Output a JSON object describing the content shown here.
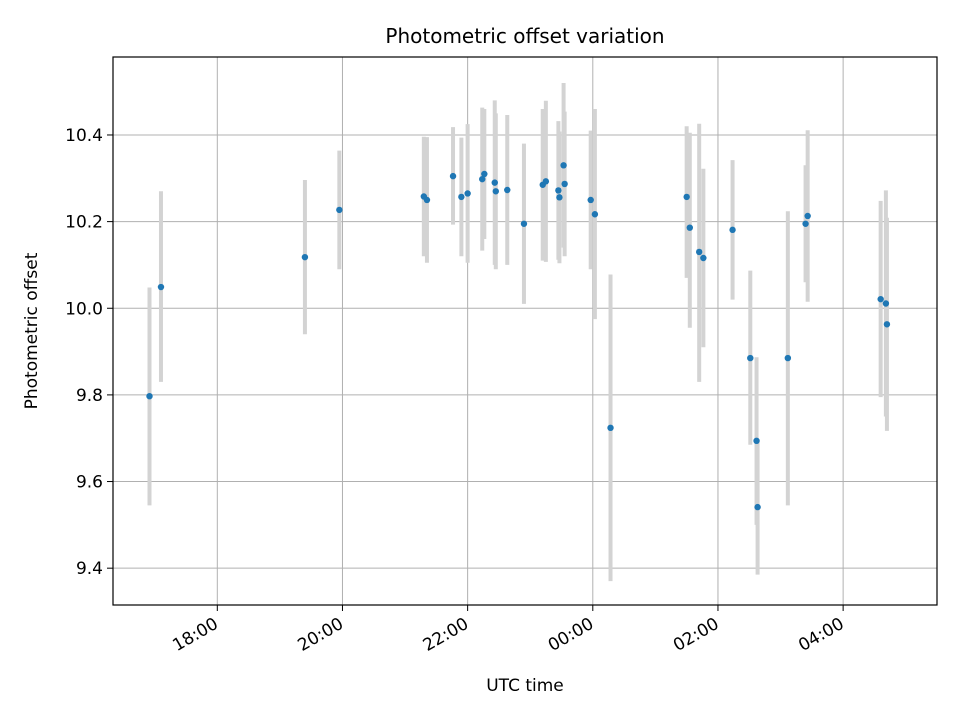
{
  "chart_data": {
    "type": "scatter",
    "title": "Photometric offset variation",
    "xlabel": "UTC time",
    "ylabel": "Photometric offset",
    "x_unit": "UTC time (HH:MM)",
    "xlim": [
      "16:20",
      "05:30"
    ],
    "ylim": [
      9.315,
      10.58
    ],
    "x_ticks": [
      "18:00",
      "20:00",
      "22:00",
      "00:00",
      "02:00",
      "04:00"
    ],
    "y_ticks": [
      9.4,
      9.6,
      9.8,
      10.0,
      10.2,
      10.4
    ],
    "y_tick_labels": [
      "9.4",
      "9.6",
      "9.8",
      "10.0",
      "10.2",
      "10.4"
    ],
    "grid": true,
    "colors": {
      "point": "#1f77b4",
      "errorbar": "#d3d3d3",
      "grid": "#b0b0b0",
      "axes": "#000000"
    },
    "points": [
      {
        "x": "16:55",
        "y": 9.797,
        "ymin": 9.545,
        "ymax": 10.048
      },
      {
        "x": "17:06",
        "y": 10.049,
        "ymin": 9.83,
        "ymax": 10.27
      },
      {
        "x": "19:24",
        "y": 10.118,
        "ymin": 9.94,
        "ymax": 10.296
      },
      {
        "x": "19:57",
        "y": 10.227,
        "ymin": 10.09,
        "ymax": 10.364
      },
      {
        "x": "21:18",
        "y": 10.258,
        "ymin": 10.12,
        "ymax": 10.396
      },
      {
        "x": "21:21",
        "y": 10.25,
        "ymin": 10.105,
        "ymax": 10.395
      },
      {
        "x": "21:46",
        "y": 10.305,
        "ymin": 10.193,
        "ymax": 10.418
      },
      {
        "x": "21:54",
        "y": 10.257,
        "ymin": 10.12,
        "ymax": 10.394
      },
      {
        "x": "22:00",
        "y": 10.265,
        "ymin": 10.105,
        "ymax": 10.425
      },
      {
        "x": "22:14",
        "y": 10.298,
        "ymin": 10.133,
        "ymax": 10.463
      },
      {
        "x": "22:16",
        "y": 10.31,
        "ymin": 10.16,
        "ymax": 10.46
      },
      {
        "x": "22:26",
        "y": 10.29,
        "ymin": 10.1,
        "ymax": 10.48
      },
      {
        "x": "22:27",
        "y": 10.27,
        "ymin": 10.09,
        "ymax": 10.45
      },
      {
        "x": "22:38",
        "y": 10.273,
        "ymin": 10.1,
        "ymax": 10.446
      },
      {
        "x": "22:54",
        "y": 10.195,
        "ymin": 10.01,
        "ymax": 10.38
      },
      {
        "x": "23:12",
        "y": 10.285,
        "ymin": 10.11,
        "ymax": 10.46
      },
      {
        "x": "23:15",
        "y": 10.293,
        "ymin": 10.107,
        "ymax": 10.479
      },
      {
        "x": "23:27",
        "y": 10.272,
        "ymin": 10.112,
        "ymax": 10.432
      },
      {
        "x": "23:28",
        "y": 10.256,
        "ymin": 10.104,
        "ymax": 10.408
      },
      {
        "x": "23:32",
        "y": 10.33,
        "ymin": 10.14,
        "ymax": 10.52
      },
      {
        "x": "23:33",
        "y": 10.287,
        "ymin": 10.12,
        "ymax": 10.454
      },
      {
        "x": "23:58",
        "y": 10.25,
        "ymin": 10.09,
        "ymax": 10.41
      },
      {
        "x": "00:02",
        "y": 10.217,
        "ymin": 9.975,
        "ymax": 10.46
      },
      {
        "x": "00:17",
        "y": 9.724,
        "ymin": 9.37,
        "ymax": 10.078
      },
      {
        "x": "01:30",
        "y": 10.257,
        "ymin": 10.07,
        "ymax": 10.42
      },
      {
        "x": "01:33",
        "y": 10.186,
        "ymin": 9.955,
        "ymax": 10.405
      },
      {
        "x": "01:42",
        "y": 10.13,
        "ymin": 9.83,
        "ymax": 10.426
      },
      {
        "x": "01:46",
        "y": 10.116,
        "ymin": 9.91,
        "ymax": 10.322
      },
      {
        "x": "02:14",
        "y": 10.181,
        "ymin": 10.02,
        "ymax": 10.342
      },
      {
        "x": "02:31",
        "y": 9.885,
        "ymin": 9.685,
        "ymax": 10.087
      },
      {
        "x": "02:37",
        "y": 9.694,
        "ymin": 9.5,
        "ymax": 9.887
      },
      {
        "x": "02:38",
        "y": 9.541,
        "ymin": 9.385,
        "ymax": 9.697
      },
      {
        "x": "03:07",
        "y": 9.885,
        "ymin": 9.545,
        "ymax": 10.224
      },
      {
        "x": "03:24",
        "y": 10.195,
        "ymin": 10.06,
        "ymax": 10.33
      },
      {
        "x": "03:26",
        "y": 10.213,
        "ymin": 10.015,
        "ymax": 10.411
      },
      {
        "x": "04:36",
        "y": 10.021,
        "ymin": 9.795,
        "ymax": 10.248
      },
      {
        "x": "04:41",
        "y": 10.011,
        "ymin": 9.75,
        "ymax": 10.272
      },
      {
        "x": "04:42",
        "y": 9.963,
        "ymin": 9.717,
        "ymax": 10.209
      }
    ]
  }
}
